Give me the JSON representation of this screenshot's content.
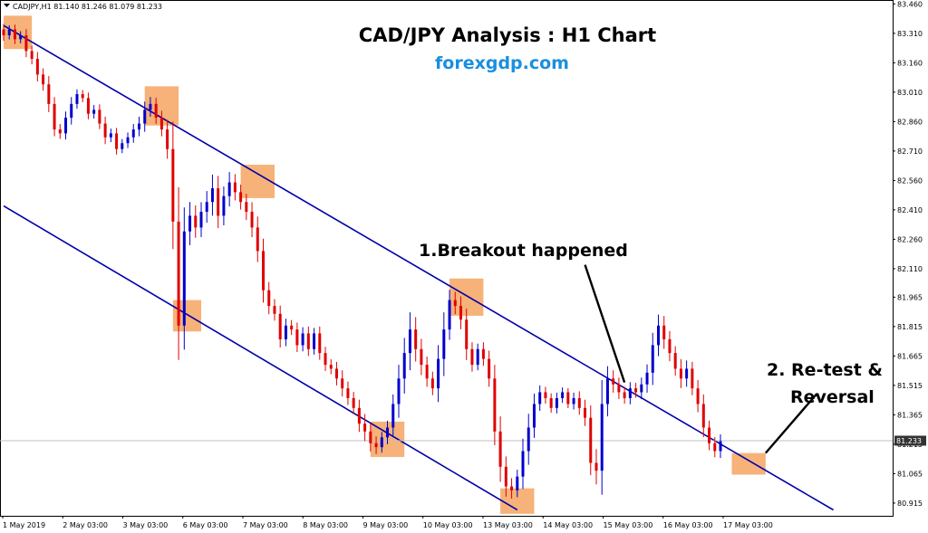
{
  "chart_data": {
    "type": "candlestick",
    "symbol_header": "CADJPY,H1  81.140 81.246 81.079 81.233",
    "title": "CAD/JPY Analysis : H1 Chart",
    "subtitle": "forexgdp.com",
    "current_price_label": "81.233",
    "current_price": 81.233,
    "ylim": [
      80.85,
      83.48
    ],
    "y_ticks": [
      "83.460",
      "83.310",
      "83.160",
      "83.010",
      "82.860",
      "82.710",
      "82.560",
      "82.410",
      "82.260",
      "82.110",
      "81.965",
      "81.815",
      "81.665",
      "81.515",
      "81.365",
      "81.215",
      "81.065",
      "80.915"
    ],
    "x_ticks": [
      "1 May 2019",
      "2 May 03:00",
      "3 May 03:00",
      "6 May 03:00",
      "7 May 03:00",
      "8 May 03:00",
      "9 May 03:00",
      "10 May 03:00",
      "13 May 03:00",
      "14 May 03:00",
      "15 May 03:00",
      "16 May 03:00",
      "17 May 03:00"
    ],
    "colors": {
      "bull": "#0000cc",
      "bear": "#e00000",
      "channel": "#0000aa",
      "highlight": "#f4a460",
      "price_tag": "#333333"
    },
    "channel_lines": [
      {
        "name": "upper",
        "from": [
          0,
          83.35
        ],
        "to": [
          147,
          80.88
        ]
      },
      {
        "name": "lower",
        "from": [
          0,
          82.43
        ],
        "to": [
          91,
          80.88
        ]
      }
    ],
    "highlight_zones": [
      {
        "x": [
          0,
          5
        ],
        "y": [
          83.23,
          83.4
        ]
      },
      {
        "x": [
          25,
          31
        ],
        "y": [
          82.84,
          83.04
        ]
      },
      {
        "x": [
          42,
          48
        ],
        "y": [
          82.47,
          82.64
        ]
      },
      {
        "x": [
          30,
          35
        ],
        "y": [
          81.79,
          81.95
        ]
      },
      {
        "x": [
          79,
          85
        ],
        "y": [
          81.87,
          82.06
        ]
      },
      {
        "x": [
          65,
          71
        ],
        "y": [
          81.15,
          81.33
        ]
      },
      {
        "x": [
          88,
          94
        ],
        "y": [
          80.86,
          80.99
        ]
      },
      {
        "x": [
          129,
          135
        ],
        "y": [
          81.06,
          81.17
        ]
      }
    ],
    "annotations": [
      {
        "text": "1.Breakout happened",
        "arrow_from": [
          103,
          82.13
        ],
        "arrow_to": [
          110,
          81.53
        ]
      },
      {
        "text": "2. Re-test &",
        "arrow_from": null,
        "arrow_to": null
      },
      {
        "text": "Reversal",
        "arrow_from": [
          144,
          81.47
        ],
        "arrow_to": [
          135,
          81.17
        ]
      }
    ],
    "candle_close": [
      83.3,
      83.33,
      83.28,
      83.3,
      83.22,
      83.18,
      83.1,
      83.05,
      82.95,
      82.82,
      82.8,
      82.88,
      82.95,
      83.0,
      82.98,
      82.9,
      82.92,
      82.85,
      82.78,
      82.8,
      82.72,
      82.75,
      82.78,
      82.82,
      82.85,
      82.92,
      82.95,
      82.88,
      82.82,
      82.72,
      82.35,
      81.82,
      82.3,
      82.38,
      82.32,
      82.4,
      82.45,
      82.52,
      82.38,
      82.48,
      82.55,
      82.5,
      82.45,
      82.4,
      82.32,
      82.2,
      82.0,
      81.92,
      81.88,
      81.75,
      81.82,
      81.8,
      81.72,
      81.78,
      81.7,
      81.78,
      81.68,
      81.62,
      81.6,
      81.55,
      81.5,
      81.45,
      81.4,
      81.32,
      81.28,
      81.22,
      81.2,
      81.25,
      81.3,
      81.42,
      81.55,
      81.68,
      81.8,
      81.7,
      81.62,
      81.55,
      81.5,
      81.65,
      81.8,
      81.95,
      81.92,
      81.85,
      81.7,
      81.62,
      81.7,
      81.65,
      81.55,
      81.28,
      81.1,
      81.0,
      80.98,
      81.05,
      81.18,
      81.3,
      81.42,
      81.48,
      81.45,
      81.4,
      81.45,
      81.48,
      81.42,
      81.45,
      81.4,
      81.35,
      81.12,
      81.08,
      81.42,
      81.55,
      81.52,
      81.48,
      81.45,
      81.5,
      81.48,
      81.52,
      81.58,
      81.72,
      81.82,
      81.75,
      81.68,
      81.6,
      81.55,
      81.6,
      81.5,
      81.42,
      81.3,
      81.22,
      81.18,
      81.23
    ],
    "candle_range": [
      0.08,
      0.06,
      0.07,
      0.06,
      0.09,
      0.08,
      0.1,
      0.09,
      0.12,
      0.1,
      0.08,
      0.09,
      0.1,
      0.07,
      0.06,
      0.08,
      0.07,
      0.08,
      0.1,
      0.07,
      0.08,
      0.06,
      0.07,
      0.08,
      0.1,
      0.12,
      0.1,
      0.09,
      0.1,
      0.14,
      0.4,
      0.5,
      0.35,
      0.2,
      0.15,
      0.14,
      0.16,
      0.2,
      0.18,
      0.14,
      0.15,
      0.12,
      0.11,
      0.12,
      0.14,
      0.16,
      0.18,
      0.12,
      0.1,
      0.12,
      0.1,
      0.08,
      0.1,
      0.09,
      0.1,
      0.08,
      0.1,
      0.09,
      0.08,
      0.1,
      0.12,
      0.1,
      0.09,
      0.12,
      0.14,
      0.12,
      0.1,
      0.08,
      0.1,
      0.14,
      0.2,
      0.22,
      0.25,
      0.18,
      0.15,
      0.12,
      0.1,
      0.2,
      0.25,
      0.15,
      0.12,
      0.14,
      0.16,
      0.1,
      0.08,
      0.1,
      0.12,
      0.2,
      0.22,
      0.15,
      0.12,
      0.1,
      0.18,
      0.2,
      0.15,
      0.1,
      0.08,
      0.07,
      0.08,
      0.07,
      0.06,
      0.08,
      0.1,
      0.12,
      0.18,
      0.2,
      0.35,
      0.18,
      0.12,
      0.1,
      0.08,
      0.09,
      0.08,
      0.1,
      0.12,
      0.18,
      0.16,
      0.14,
      0.12,
      0.1,
      0.14,
      0.12,
      0.1,
      0.12,
      0.14,
      0.1,
      0.09,
      0.1
    ]
  }
}
